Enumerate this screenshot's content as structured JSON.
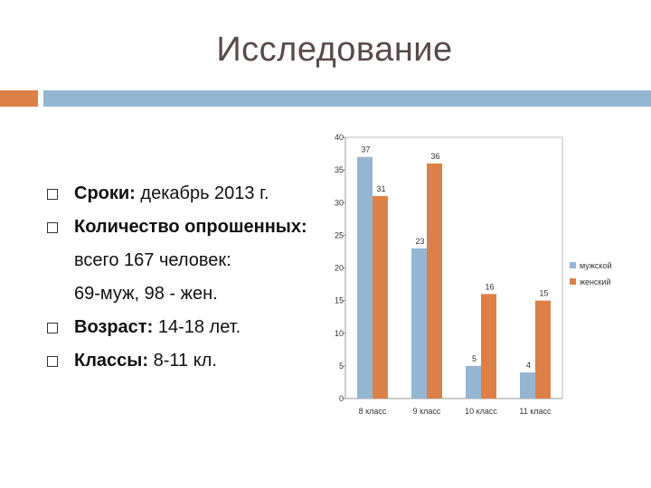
{
  "slide": {
    "title": "Исследование",
    "bullets": [
      {
        "bold": "Сроки:",
        "rest": " декабрь 2013 г.",
        "marker": true
      },
      {
        "bold": "Количество опрошенных:",
        "rest": "",
        "marker": true
      },
      {
        "bold": "",
        "rest": "всего 167 человек:",
        "marker": false
      },
      {
        "bold": "",
        "rest": "69-муж, 98 - жен.",
        "marker": false
      },
      {
        "bold": "Возраст:",
        "rest": " 14-18 лет.",
        "marker": true
      },
      {
        "bold": "Классы:",
        "rest": "  8-11 кл.",
        "marker": true
      }
    ]
  },
  "colors": {
    "accent_orange": "#dd8047",
    "accent_blue": "#94b6d2",
    "male": "#94b6d2",
    "female": "#dd8047"
  },
  "chart_data": {
    "type": "bar",
    "categories": [
      "8 класс",
      "9 класс",
      "10 класс",
      "11 класс"
    ],
    "series": [
      {
        "name": "мужской",
        "values": [
          37,
          23,
          5,
          4
        ],
        "color": "#94b6d2"
      },
      {
        "name": "женский",
        "values": [
          31,
          36,
          16,
          15
        ],
        "color": "#dd8047"
      }
    ],
    "ylim": [
      0,
      40
    ],
    "yticks": [
      0,
      5,
      10,
      15,
      20,
      25,
      30,
      35,
      40
    ],
    "grid": false,
    "legend": "right",
    "data_labels": true
  }
}
